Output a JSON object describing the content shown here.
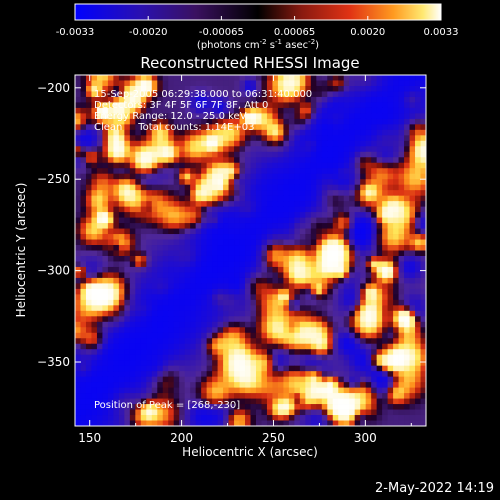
{
  "colorbar": {
    "ticks": [
      "-0.0033",
      "-0.0020",
      "-0.00065",
      "0.00065",
      "0.0020",
      "0.0033"
    ],
    "unit_parts": [
      "(photons cm",
      "-2",
      " s",
      "-1",
      " asec",
      "-2",
      ")"
    ]
  },
  "chart_data": {
    "type": "heatmap",
    "title": "Reconstructed RHESSI Image",
    "xlabel": "Heliocentric X (arcsec)",
    "ylabel": "Heliocentric Y (arcsec)",
    "xlim": [
      142,
      333
    ],
    "ylim": [
      -385,
      -193
    ],
    "xticks": [
      150,
      200,
      250,
      300
    ],
    "yticks": [
      -200,
      -250,
      -300,
      -350
    ],
    "value_range": [
      -0.0033,
      0.0033
    ],
    "colormap": [
      "#0000ff",
      "#3a1a9e",
      "#5a2da8",
      "#000000",
      "#7a1a10",
      "#d42814",
      "#ff8a1a",
      "#ffe050",
      "#ffffff"
    ],
    "annotations": [
      "15-Sep-2005 06:29:38.000 to 06:31:40.000",
      "Detectors: 3F 4F 5F 6F 7F 8F, Att 0",
      "Energy Range: 12.0 - 25.0 keV",
      "Clean     Total counts: 1.14E+03"
    ],
    "peak_label": "Position of Peak = [268,-230]",
    "peak": [
      268,
      -230
    ]
  },
  "footer_date": "2-May-2022 14:19"
}
